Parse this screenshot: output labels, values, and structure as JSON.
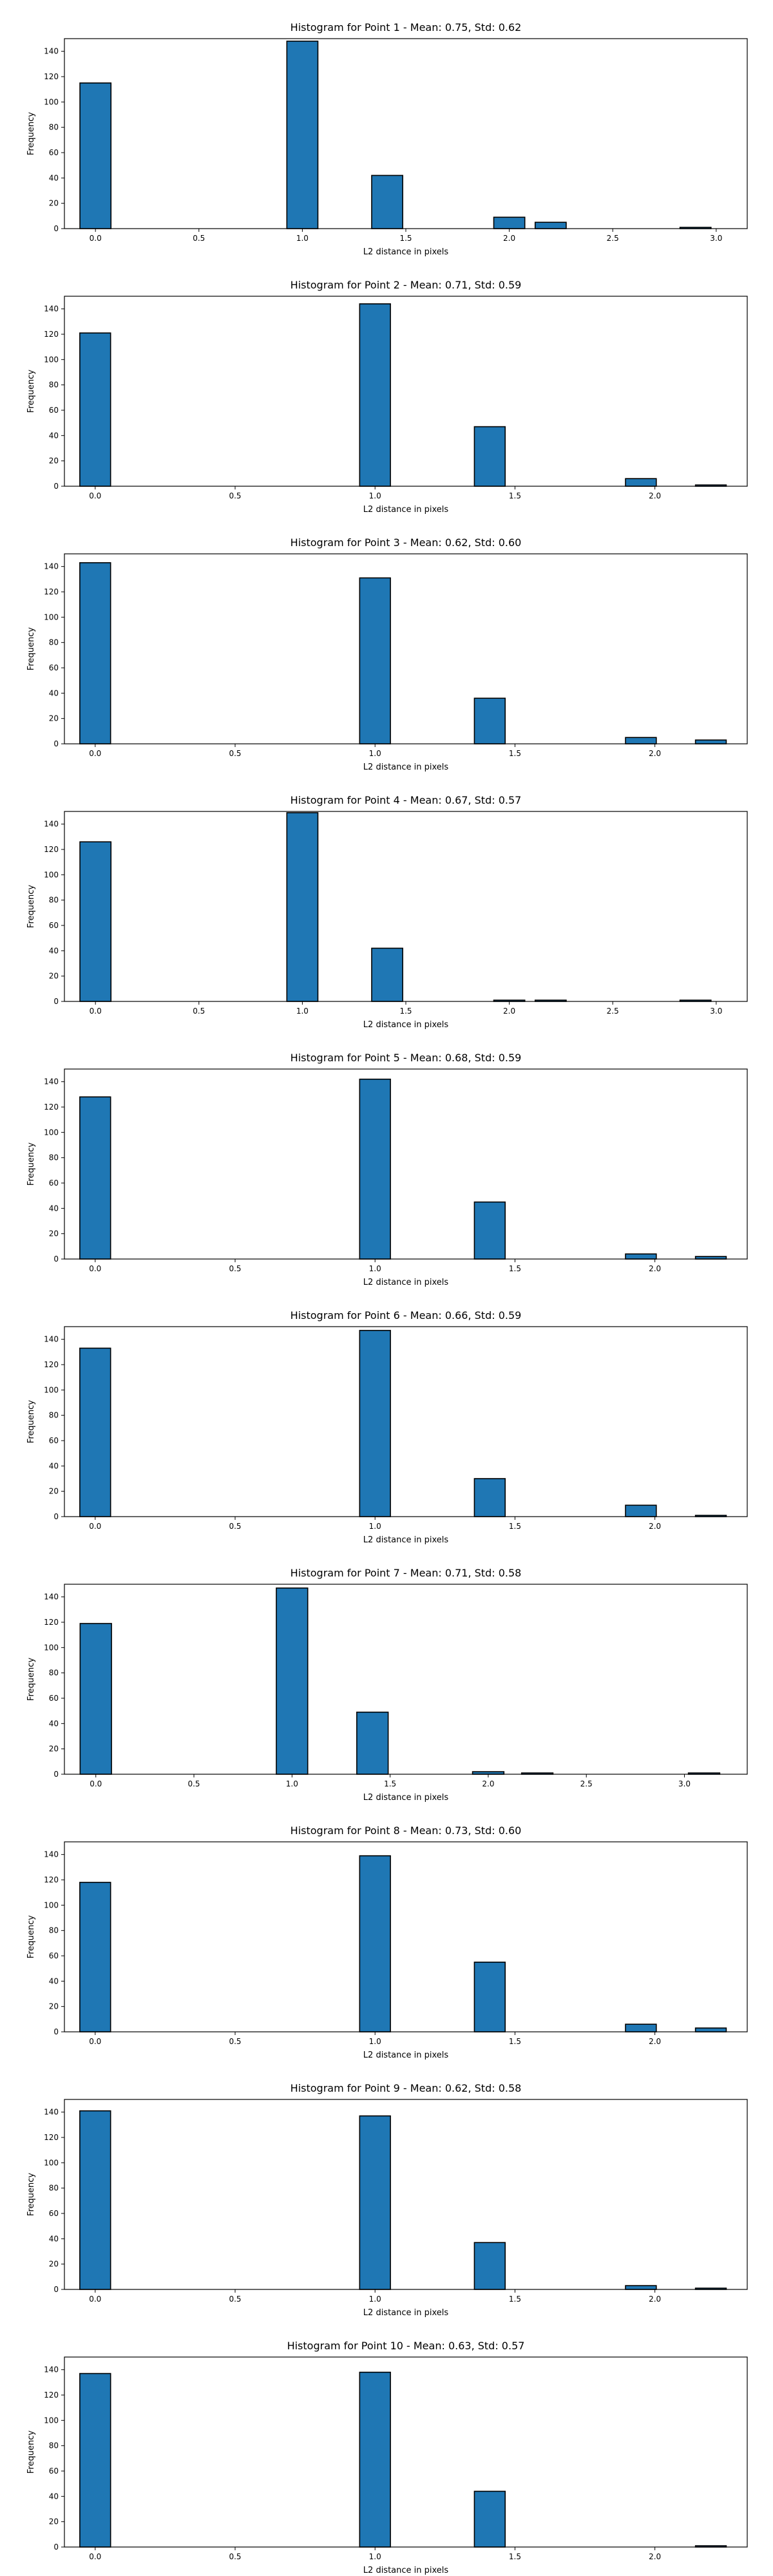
{
  "colors": {
    "bar": "#1f77b4",
    "bar_edge": "#000000",
    "background": "#ffffff"
  },
  "chart_data": [
    {
      "type": "bar",
      "title": "Histogram for Point 1 - Mean: 0.75, Std: 0.62",
      "xlabel": "L2 distance in pixels",
      "ylabel": "Frequency",
      "xlim": [
        -0.15,
        3.15
      ],
      "ylim": [
        0,
        150
      ],
      "xticks": [
        "0.0",
        "0.5",
        "1.0",
        "1.5",
        "2.0",
        "2.5",
        "3.0"
      ],
      "yticks": [
        "0",
        "20",
        "40",
        "60",
        "80",
        "100",
        "120",
        "140"
      ],
      "bin_width": 0.15,
      "bars": [
        {
          "x": 0.0,
          "y": 115
        },
        {
          "x": 1.0,
          "y": 148
        },
        {
          "x": 1.41,
          "y": 42
        },
        {
          "x": 2.0,
          "y": 9
        },
        {
          "x": 2.2,
          "y": 5
        },
        {
          "x": 2.9,
          "y": 1
        }
      ]
    },
    {
      "type": "bar",
      "title": "Histogram for Point 2 - Mean: 0.71, Std: 0.59",
      "xlabel": "L2 distance in pixels",
      "ylabel": "Frequency",
      "xlim": [
        -0.11,
        2.33
      ],
      "ylim": [
        0,
        150
      ],
      "xticks": [
        "0.0",
        "0.5",
        "1.0",
        "1.5",
        "2.0"
      ],
      "yticks": [
        "0",
        "20",
        "40",
        "60",
        "80",
        "100",
        "120",
        "140"
      ],
      "bin_width": 0.11,
      "bars": [
        {
          "x": 0.0,
          "y": 121
        },
        {
          "x": 1.0,
          "y": 144
        },
        {
          "x": 1.41,
          "y": 47
        },
        {
          "x": 1.95,
          "y": 6
        },
        {
          "x": 2.2,
          "y": 1
        }
      ]
    },
    {
      "type": "bar",
      "title": "Histogram for Point 3 - Mean: 0.62, Std: 0.60",
      "xlabel": "L2 distance in pixels",
      "ylabel": "Frequency",
      "xlim": [
        -0.11,
        2.33
      ],
      "ylim": [
        0,
        150
      ],
      "xticks": [
        "0.0",
        "0.5",
        "1.0",
        "1.5",
        "2.0"
      ],
      "yticks": [
        "0",
        "20",
        "40",
        "60",
        "80",
        "100",
        "120",
        "140"
      ],
      "bin_width": 0.11,
      "bars": [
        {
          "x": 0.0,
          "y": 143
        },
        {
          "x": 1.0,
          "y": 131
        },
        {
          "x": 1.41,
          "y": 36
        },
        {
          "x": 1.95,
          "y": 5
        },
        {
          "x": 2.2,
          "y": 3
        }
      ]
    },
    {
      "type": "bar",
      "title": "Histogram for Point 4 - Mean: 0.67, Std: 0.57",
      "xlabel": "L2 distance in pixels",
      "ylabel": "Frequency",
      "xlim": [
        -0.15,
        3.15
      ],
      "ylim": [
        0,
        150
      ],
      "xticks": [
        "0.0",
        "0.5",
        "1.0",
        "1.5",
        "2.0",
        "2.5",
        "3.0"
      ],
      "yticks": [
        "0",
        "20",
        "40",
        "60",
        "80",
        "100",
        "120",
        "140"
      ],
      "bin_width": 0.15,
      "bars": [
        {
          "x": 0.0,
          "y": 126
        },
        {
          "x": 1.0,
          "y": 149
        },
        {
          "x": 1.41,
          "y": 42
        },
        {
          "x": 2.0,
          "y": 1
        },
        {
          "x": 2.2,
          "y": 1
        },
        {
          "x": 2.9,
          "y": 1
        }
      ]
    },
    {
      "type": "bar",
      "title": "Histogram for Point 5 - Mean: 0.68, Std: 0.59",
      "xlabel": "L2 distance in pixels",
      "ylabel": "Frequency",
      "xlim": [
        -0.11,
        2.33
      ],
      "ylim": [
        0,
        150
      ],
      "xticks": [
        "0.0",
        "0.5",
        "1.0",
        "1.5",
        "2.0"
      ],
      "yticks": [
        "0",
        "20",
        "40",
        "60",
        "80",
        "100",
        "120",
        "140"
      ],
      "bin_width": 0.11,
      "bars": [
        {
          "x": 0.0,
          "y": 128
        },
        {
          "x": 1.0,
          "y": 142
        },
        {
          "x": 1.41,
          "y": 45
        },
        {
          "x": 1.95,
          "y": 4
        },
        {
          "x": 2.2,
          "y": 2
        }
      ]
    },
    {
      "type": "bar",
      "title": "Histogram for Point 6 - Mean: 0.66, Std: 0.59",
      "xlabel": "L2 distance in pixels",
      "ylabel": "Frequency",
      "xlim": [
        -0.11,
        2.33
      ],
      "ylim": [
        0,
        150
      ],
      "xticks": [
        "0.0",
        "0.5",
        "1.0",
        "1.5",
        "2.0"
      ],
      "yticks": [
        "0",
        "20",
        "40",
        "60",
        "80",
        "100",
        "120",
        "140"
      ],
      "bin_width": 0.11,
      "bars": [
        {
          "x": 0.0,
          "y": 133
        },
        {
          "x": 1.0,
          "y": 147
        },
        {
          "x": 1.41,
          "y": 30
        },
        {
          "x": 1.95,
          "y": 9
        },
        {
          "x": 2.2,
          "y": 1
        }
      ]
    },
    {
      "type": "bar",
      "title": "Histogram for Point 7 - Mean: 0.71, Std: 0.58",
      "xlabel": "L2 distance in pixels",
      "ylabel": "Frequency",
      "xlim": [
        -0.16,
        3.32
      ],
      "ylim": [
        0,
        150
      ],
      "xticks": [
        "0.0",
        "0.5",
        "1.0",
        "1.5",
        "2.0",
        "2.5",
        "3.0"
      ],
      "yticks": [
        "0",
        "20",
        "40",
        "60",
        "80",
        "100",
        "120",
        "140"
      ],
      "bin_width": 0.16,
      "bars": [
        {
          "x": 0.0,
          "y": 119
        },
        {
          "x": 1.0,
          "y": 147
        },
        {
          "x": 1.41,
          "y": 49
        },
        {
          "x": 2.0,
          "y": 2
        },
        {
          "x": 2.25,
          "y": 1
        },
        {
          "x": 3.1,
          "y": 1
        }
      ]
    },
    {
      "type": "bar",
      "title": "Histogram for Point 8 - Mean: 0.73, Std: 0.60",
      "xlabel": "L2 distance in pixels",
      "ylabel": "Frequency",
      "xlim": [
        -0.11,
        2.33
      ],
      "ylim": [
        0,
        150
      ],
      "xticks": [
        "0.0",
        "0.5",
        "1.0",
        "1.5",
        "2.0"
      ],
      "yticks": [
        "0",
        "20",
        "40",
        "60",
        "80",
        "100",
        "120",
        "140"
      ],
      "bin_width": 0.11,
      "bars": [
        {
          "x": 0.0,
          "y": 118
        },
        {
          "x": 1.0,
          "y": 139
        },
        {
          "x": 1.41,
          "y": 55
        },
        {
          "x": 1.95,
          "y": 6
        },
        {
          "x": 2.2,
          "y": 3
        }
      ]
    },
    {
      "type": "bar",
      "title": "Histogram for Point 9 - Mean: 0.62, Std: 0.58",
      "xlabel": "L2 distance in pixels",
      "ylabel": "Frequency",
      "xlim": [
        -0.11,
        2.33
      ],
      "ylim": [
        0,
        150
      ],
      "xticks": [
        "0.0",
        "0.5",
        "1.0",
        "1.5",
        "2.0"
      ],
      "yticks": [
        "0",
        "20",
        "40",
        "60",
        "80",
        "100",
        "120",
        "140"
      ],
      "bin_width": 0.11,
      "bars": [
        {
          "x": 0.0,
          "y": 141
        },
        {
          "x": 1.0,
          "y": 137
        },
        {
          "x": 1.41,
          "y": 37
        },
        {
          "x": 1.95,
          "y": 3
        },
        {
          "x": 2.2,
          "y": 1
        }
      ]
    },
    {
      "type": "bar",
      "title": "Histogram for Point 10 - Mean: 0.63, Std: 0.57",
      "xlabel": "L2 distance in pixels",
      "ylabel": "Frequency",
      "xlim": [
        -0.11,
        2.33
      ],
      "ylim": [
        0,
        150
      ],
      "xticks": [
        "0.0",
        "0.5",
        "1.0",
        "1.5",
        "2.0"
      ],
      "yticks": [
        "0",
        "20",
        "40",
        "60",
        "80",
        "100",
        "120",
        "140"
      ],
      "bin_width": 0.11,
      "bars": [
        {
          "x": 0.0,
          "y": 137
        },
        {
          "x": 1.0,
          "y": 138
        },
        {
          "x": 1.41,
          "y": 44
        },
        {
          "x": 2.2,
          "y": 1
        }
      ]
    }
  ]
}
